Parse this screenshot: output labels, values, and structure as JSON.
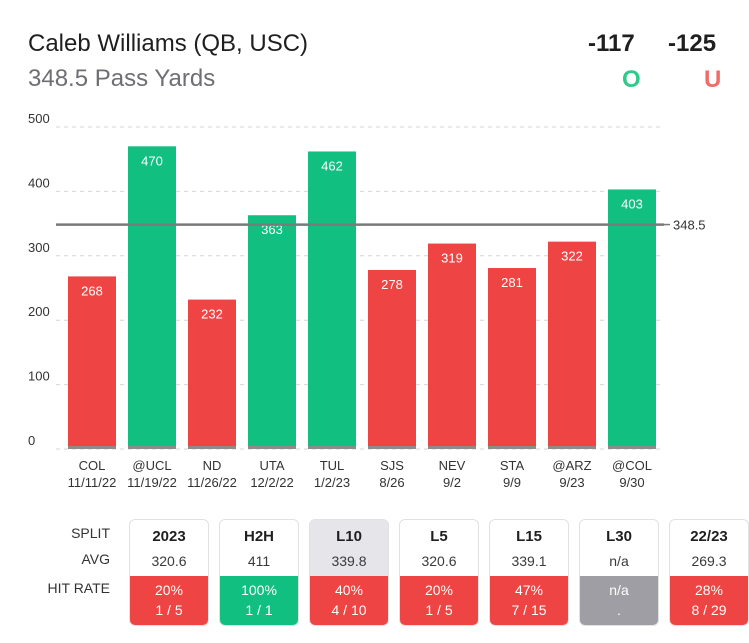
{
  "header": {
    "player": "Caleb Williams (QB, USC)",
    "prop": "348.5 Pass Yards",
    "over_odds": "-117",
    "under_odds": "-125",
    "over_label": "O",
    "under_label": "U"
  },
  "colors": {
    "over": "#11bf80",
    "under": "#ef4444",
    "na": "#9e9ea4",
    "line": "#7a7a7a"
  },
  "chart_data": {
    "type": "bar",
    "line_value": 348.5,
    "line_label": "348.5",
    "ylim": [
      0,
      500
    ],
    "yticks": [
      0,
      100,
      200,
      300,
      400,
      500
    ],
    "ytick_labels": [
      "0",
      "100",
      "200",
      "300",
      "400",
      "500"
    ],
    "categories": [
      {
        "opp": "COL",
        "date": "11/11/22"
      },
      {
        "opp": "@UCL",
        "date": "11/19/22"
      },
      {
        "opp": "ND",
        "date": "11/26/22"
      },
      {
        "opp": "UTA",
        "date": "12/2/22"
      },
      {
        "opp": "TUL",
        "date": "1/2/23"
      },
      {
        "opp": "SJS",
        "date": "8/26"
      },
      {
        "opp": "NEV",
        "date": "9/2"
      },
      {
        "opp": "STA",
        "date": "9/9"
      },
      {
        "opp": "@ARZ",
        "date": "9/23"
      },
      {
        "opp": "@COL",
        "date": "9/30"
      }
    ],
    "values": [
      268,
      470,
      232,
      363,
      462,
      278,
      319,
      281,
      322,
      403
    ]
  },
  "splits": {
    "row_labels": {
      "split": "SPLIT",
      "avg": "AVG",
      "hit": "HIT RATE"
    },
    "items": [
      {
        "label": "2023",
        "avg": "320.6",
        "pct": "20%",
        "frac": "1 / 5",
        "status": "under",
        "active": false
      },
      {
        "label": "H2H",
        "avg": "411",
        "pct": "100%",
        "frac": "1 / 1",
        "status": "over",
        "active": false
      },
      {
        "label": "L10",
        "avg": "339.8",
        "pct": "40%",
        "frac": "4 / 10",
        "status": "under",
        "active": true
      },
      {
        "label": "L5",
        "avg": "320.6",
        "pct": "20%",
        "frac": "1 / 5",
        "status": "under",
        "active": false
      },
      {
        "label": "L15",
        "avg": "339.1",
        "pct": "47%",
        "frac": "7 / 15",
        "status": "under",
        "active": false
      },
      {
        "label": "L30",
        "avg": "n/a",
        "pct": "n/a",
        "frac": ".",
        "status": "na",
        "active": false
      },
      {
        "label": "22/23",
        "avg": "269.3",
        "pct": "28%",
        "frac": "8 / 29",
        "status": "under",
        "active": false
      }
    ]
  }
}
